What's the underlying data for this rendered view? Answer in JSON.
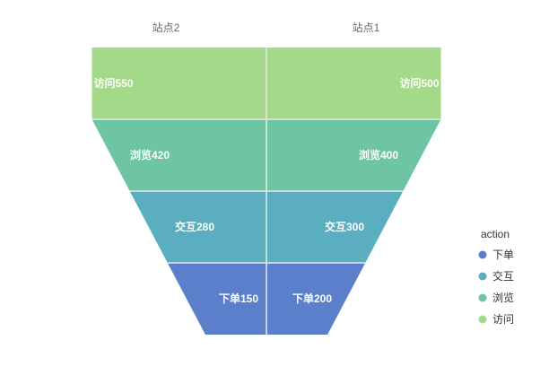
{
  "chart_data": {
    "type": "funnel",
    "series": [
      {
        "name": "站点2",
        "stages": [
          "访问",
          "浏览",
          "交互",
          "下单"
        ],
        "values": [
          550,
          420,
          280,
          150
        ]
      },
      {
        "name": "站点1",
        "stages": [
          "访问",
          "浏览",
          "交互",
          "下单"
        ],
        "values": [
          500,
          400,
          300,
          200
        ]
      }
    ],
    "legend": {
      "title": "action",
      "placement": "right",
      "items": [
        {
          "label": "下单",
          "color": "#5B7FCA"
        },
        {
          "label": "交互",
          "color": "#5AAEC0"
        },
        {
          "label": "浏览",
          "color": "#6EC5A4"
        },
        {
          "label": "访问",
          "color": "#A4D98A"
        }
      ]
    },
    "colors": {
      "访问": "#A4D98A",
      "浏览": "#6EC5A4",
      "交互": "#5AAEC0",
      "下单": "#5B7FCA"
    }
  }
}
